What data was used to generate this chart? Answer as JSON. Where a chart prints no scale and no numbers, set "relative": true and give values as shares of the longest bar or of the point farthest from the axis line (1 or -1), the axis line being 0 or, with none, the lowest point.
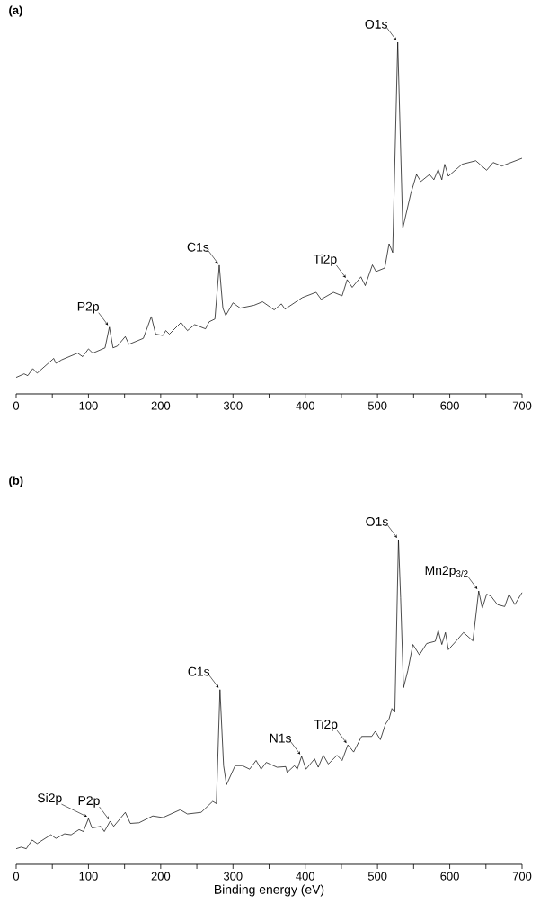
{
  "chart_data": [
    {
      "type": "line",
      "title": "**(a)**",
      "relative": true,
      "color": "#000000",
      "xlim": [
        0,
        700
      ],
      "xticks": [
        0,
        {
          "value": 50,
          "label": null
        },
        100,
        {
          "value": 150,
          "label": null
        },
        200,
        {
          "value": 250,
          "label": null
        },
        300,
        {
          "value": 350,
          "label": null
        },
        400,
        {
          "value": 450,
          "label": null
        },
        500,
        {
          "value": 550,
          "label": null
        },
        600,
        {
          "value": 650,
          "label": null
        },
        700
      ],
      "x": [
        0,
        11,
        16,
        23,
        29,
        52,
        55,
        63,
        85,
        92,
        100,
        106,
        123,
        129,
        134,
        140,
        151,
        156,
        176,
        187,
        193,
        203,
        207,
        212,
        228,
        237,
        247,
        262,
        267,
        275,
        281,
        286,
        290,
        300,
        310,
        329,
        341,
        357,
        367,
        372,
        396,
        415,
        422,
        439,
        451,
        458,
        465,
        477,
        483,
        493,
        498,
        510,
        516,
        521,
        528,
        535,
        546,
        554,
        560,
        572,
        578,
        584,
        589,
        593,
        598,
        617,
        636,
        651,
        660,
        672,
        700
      ],
      "values": [
        0.047,
        0.057,
        0.052,
        0.072,
        0.059,
        0.101,
        0.087,
        0.097,
        0.116,
        0.106,
        0.128,
        0.116,
        0.131,
        0.19,
        0.131,
        0.136,
        0.163,
        0.141,
        0.158,
        0.22,
        0.17,
        0.166,
        0.18,
        0.17,
        0.203,
        0.18,
        0.197,
        0.185,
        0.205,
        0.213,
        0.366,
        0.244,
        0.223,
        0.259,
        0.244,
        0.252,
        0.262,
        0.239,
        0.256,
        0.241,
        0.274,
        0.289,
        0.269,
        0.289,
        0.279,
        0.325,
        0.303,
        0.333,
        0.308,
        0.367,
        0.348,
        0.358,
        0.427,
        0.402,
        1.0,
        0.471,
        0.569,
        0.624,
        0.604,
        0.624,
        0.609,
        0.638,
        0.609,
        0.653,
        0.619,
        0.653,
        0.663,
        0.636,
        0.658,
        0.648,
        0.67
      ],
      "annotations": [
        {
          "text": "P2p",
          "x": 129,
          "y": 0.19
        },
        {
          "text": "C1s",
          "x": 281,
          "y": 0.366
        },
        {
          "text": "Ti2p",
          "x": 458,
          "y": 0.325
        },
        {
          "text": "O1s",
          "x": 528,
          "y": 1.0
        }
      ]
    },
    {
      "type": "line",
      "title": "**(b)**",
      "xlabel": "Binding energy (eV)",
      "relative": true,
      "color": "#000000",
      "xlim": [
        0,
        700
      ],
      "xticks": [
        0,
        {
          "value": 50,
          "label": null
        },
        100,
        {
          "value": 150,
          "label": null
        },
        200,
        {
          "value": 250,
          "label": null
        },
        300,
        {
          "value": 350,
          "label": null
        },
        400,
        {
          "value": 450,
          "label": null
        },
        500,
        {
          "value": 550,
          "label": null
        },
        600,
        {
          "value": 650,
          "label": null
        },
        700
      ],
      "x": [
        0,
        7,
        14,
        22,
        29,
        48,
        55,
        67,
        76,
        87,
        93,
        100,
        105,
        117,
        122,
        130,
        135,
        151,
        158,
        170,
        189,
        203,
        227,
        237,
        256,
        272,
        277,
        282,
        287,
        291,
        303,
        313,
        323,
        332,
        339,
        346,
        361,
        373,
        375,
        385,
        389,
        395,
        401,
        413,
        418,
        425,
        432,
        444,
        451,
        459,
        467,
        478,
        492,
        497,
        504,
        511,
        516,
        520,
        524,
        529,
        532,
        536,
        542,
        549,
        558,
        568,
        580,
        584,
        589,
        594,
        598,
        609,
        619,
        632,
        640,
        645,
        651,
        657,
        666,
        676,
        682,
        690,
        700
      ],
      "values": [
        0.048,
        0.053,
        0.048,
        0.075,
        0.064,
        0.091,
        0.08,
        0.094,
        0.091,
        0.107,
        0.101,
        0.141,
        0.112,
        0.117,
        0.101,
        0.133,
        0.117,
        0.16,
        0.126,
        0.128,
        0.149,
        0.144,
        0.168,
        0.155,
        0.16,
        0.194,
        0.187,
        0.538,
        0.304,
        0.245,
        0.304,
        0.304,
        0.293,
        0.32,
        0.293,
        0.314,
        0.299,
        0.301,
        0.283,
        0.304,
        0.293,
        0.333,
        0.293,
        0.325,
        0.299,
        0.336,
        0.309,
        0.336,
        0.32,
        0.368,
        0.346,
        0.394,
        0.394,
        0.41,
        0.384,
        0.432,
        0.448,
        0.48,
        0.469,
        1.0,
        0.821,
        0.544,
        0.597,
        0.677,
        0.645,
        0.68,
        0.687,
        0.72,
        0.677,
        0.714,
        0.661,
        0.688,
        0.714,
        0.688,
        0.842,
        0.789,
        0.832,
        0.826,
        0.8,
        0.794,
        0.832,
        0.8,
        0.837
      ],
      "annotations": [
        {
          "text": "Si2p",
          "x": 100,
          "y": 0.141
        },
        {
          "text": "P2p",
          "x": 130,
          "y": 0.133
        },
        {
          "text": "C1s",
          "x": 282,
          "y": 0.538
        },
        {
          "text": "N1s",
          "x": 395,
          "y": 0.333
        },
        {
          "text": "Ti2p",
          "x": 459,
          "y": 0.368
        },
        {
          "text": "O1s",
          "x": 529,
          "y": 1.0
        },
        {
          "text": "Mn2p$_{3/2}$",
          "x": 640,
          "y": 0.842
        }
      ]
    }
  ]
}
